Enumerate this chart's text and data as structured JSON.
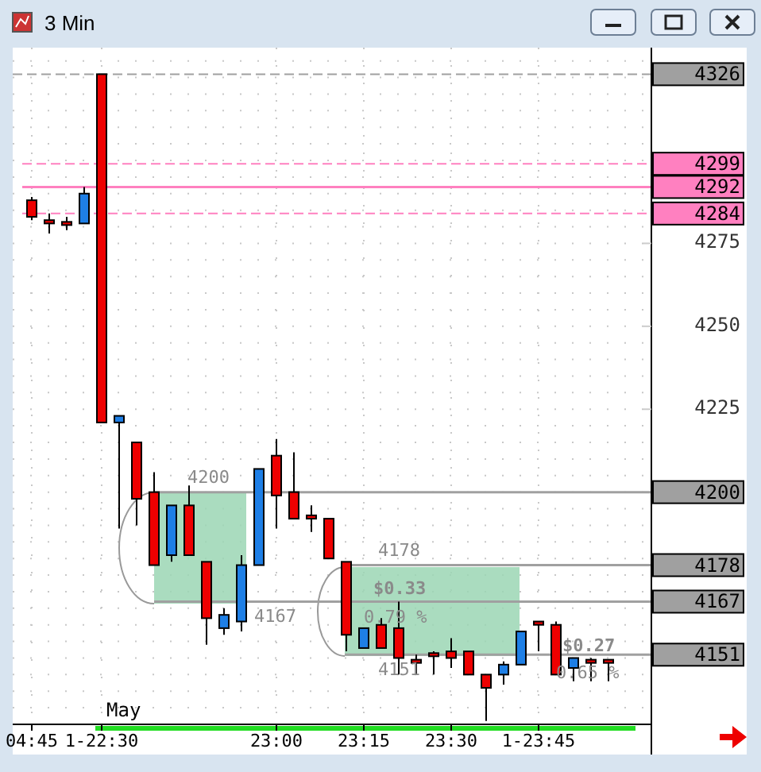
{
  "chart_data": {
    "type": "candlestick",
    "title": "3 Min",
    "categories": [
      "04:45",
      null,
      null,
      null,
      "1-22:30",
      null,
      null,
      null,
      null,
      null,
      null,
      null,
      null,
      null,
      "23:00",
      null,
      null,
      null,
      null,
      "23:15",
      null,
      null,
      null,
      null,
      "23:30",
      null,
      null,
      null,
      null,
      "1-23:45",
      null,
      null,
      null,
      null
    ],
    "ohlc": [
      [
        4288,
        4289,
        4282,
        4283
      ],
      [
        4282,
        4284,
        4278,
        4281
      ],
      [
        4281,
        4283,
        4279,
        4281
      ],
      [
        4281,
        4292,
        4281,
        4290
      ],
      [
        4326,
        4326,
        4221,
        4221
      ],
      [
        4221,
        4223,
        4189,
        4223
      ],
      [
        4215,
        4215,
        4190,
        4198
      ],
      [
        4200,
        4206,
        4178,
        4178
      ],
      [
        4181,
        4196,
        4179,
        4196
      ],
      [
        4196,
        4202,
        4181,
        4181
      ],
      [
        4179,
        4179,
        4154,
        4162
      ],
      [
        4159,
        4165,
        4157,
        4163
      ],
      [
        4161,
        4181,
        4158,
        4178
      ],
      [
        4178,
        4207,
        4178,
        4207
      ],
      [
        4211,
        4216,
        4189,
        4199
      ],
      [
        4200,
        4212,
        4192,
        4192
      ],
      [
        4193,
        4196,
        4188,
        4192
      ],
      [
        4192,
        4192,
        4180,
        4180
      ],
      [
        4179,
        4179,
        4152,
        4157
      ],
      [
        4153,
        4159,
        4153,
        4159
      ],
      [
        4160,
        4162,
        4153,
        4153
      ],
      [
        4159,
        4167,
        4145,
        4150
      ],
      [
        4149,
        4151,
        4145,
        4149
      ],
      [
        4151,
        4152,
        4145,
        4151
      ],
      [
        4152,
        4156,
        4147,
        4150
      ],
      [
        4152,
        4152,
        4145,
        4145
      ],
      [
        4145,
        4145,
        4131,
        4141
      ],
      [
        4145,
        4149,
        4142,
        4148
      ],
      [
        4148,
        4158,
        4148,
        4158
      ],
      [
        4161,
        4161,
        4152,
        4160
      ],
      [
        4160,
        4161,
        4145,
        4145
      ],
      [
        4147,
        4150,
        4143,
        4150
      ],
      [
        4149,
        4150,
        4143,
        4149
      ],
      [
        4149,
        4149,
        4143,
        4149
      ]
    ],
    "colors": [
      "#ee0000",
      "#ee0000",
      "#ee0000",
      "#1e7fe6",
      "#ee0000",
      "#1e7fe6",
      "#ee0000",
      "#ee0000",
      "#1e7fe6",
      "#ee0000",
      "#ee0000",
      "#1e7fe6",
      "#1e7fe6",
      "#1e7fe6",
      "#ee0000",
      "#ee0000",
      "#ee0000",
      "#ee0000",
      "#ee0000",
      "#1e7fe6",
      "#ee0000",
      "#ee0000",
      "#ee0000",
      "#ee0000",
      "#ee0000",
      "#ee0000",
      "#ee0000",
      "#1e7fe6",
      "#1e7fe6",
      "#ee0000",
      "#ee0000",
      "#1e7fe6",
      "#ee0000",
      "#ee0000"
    ],
    "ylim": [
      4130,
      4334
    ],
    "yticks": [
      4275,
      4250,
      4225
    ],
    "grid": true,
    "ref_lines": [
      {
        "axis": "y",
        "value": 4326,
        "label": "4326",
        "color": "#a0a0a0",
        "line_style": "dashed"
      },
      {
        "axis": "y",
        "value": 4299,
        "label": "4299",
        "color": "#ff80c0",
        "line_style": "dashed"
      },
      {
        "axis": "y",
        "value": 4292,
        "label": "4292",
        "color": "#ff80c0",
        "line_style": "solid"
      },
      {
        "axis": "y",
        "value": 4284,
        "label": "4284",
        "color": "#ff80c0",
        "line_style": "dashed"
      },
      {
        "axis": "y",
        "value": 4200,
        "label": "4200",
        "color": "#a0a0a0",
        "line_style": "solid"
      },
      {
        "axis": "y",
        "value": 4178,
        "label": "4178",
        "color": "#a0a0a0",
        "line_style": "solid"
      },
      {
        "axis": "y",
        "value": 4167,
        "label": "4167",
        "color": "#a0a0a0",
        "line_style": "solid"
      },
      {
        "axis": "y",
        "value": 4151,
        "label": "4151",
        "color": "#a0a0a0",
        "line_style": "solid"
      }
    ],
    "annotations": [
      "May",
      {
        "text": "4200",
        "y": 4200
      },
      {
        "text": "4167",
        "y": 4167
      },
      {
        "text": "4178",
        "y": 4178
      },
      "$0.33",
      "0.79 %",
      {
        "text": "4151",
        "y": 4151
      },
      "$0.27",
      "0.65 %"
    ]
  }
}
